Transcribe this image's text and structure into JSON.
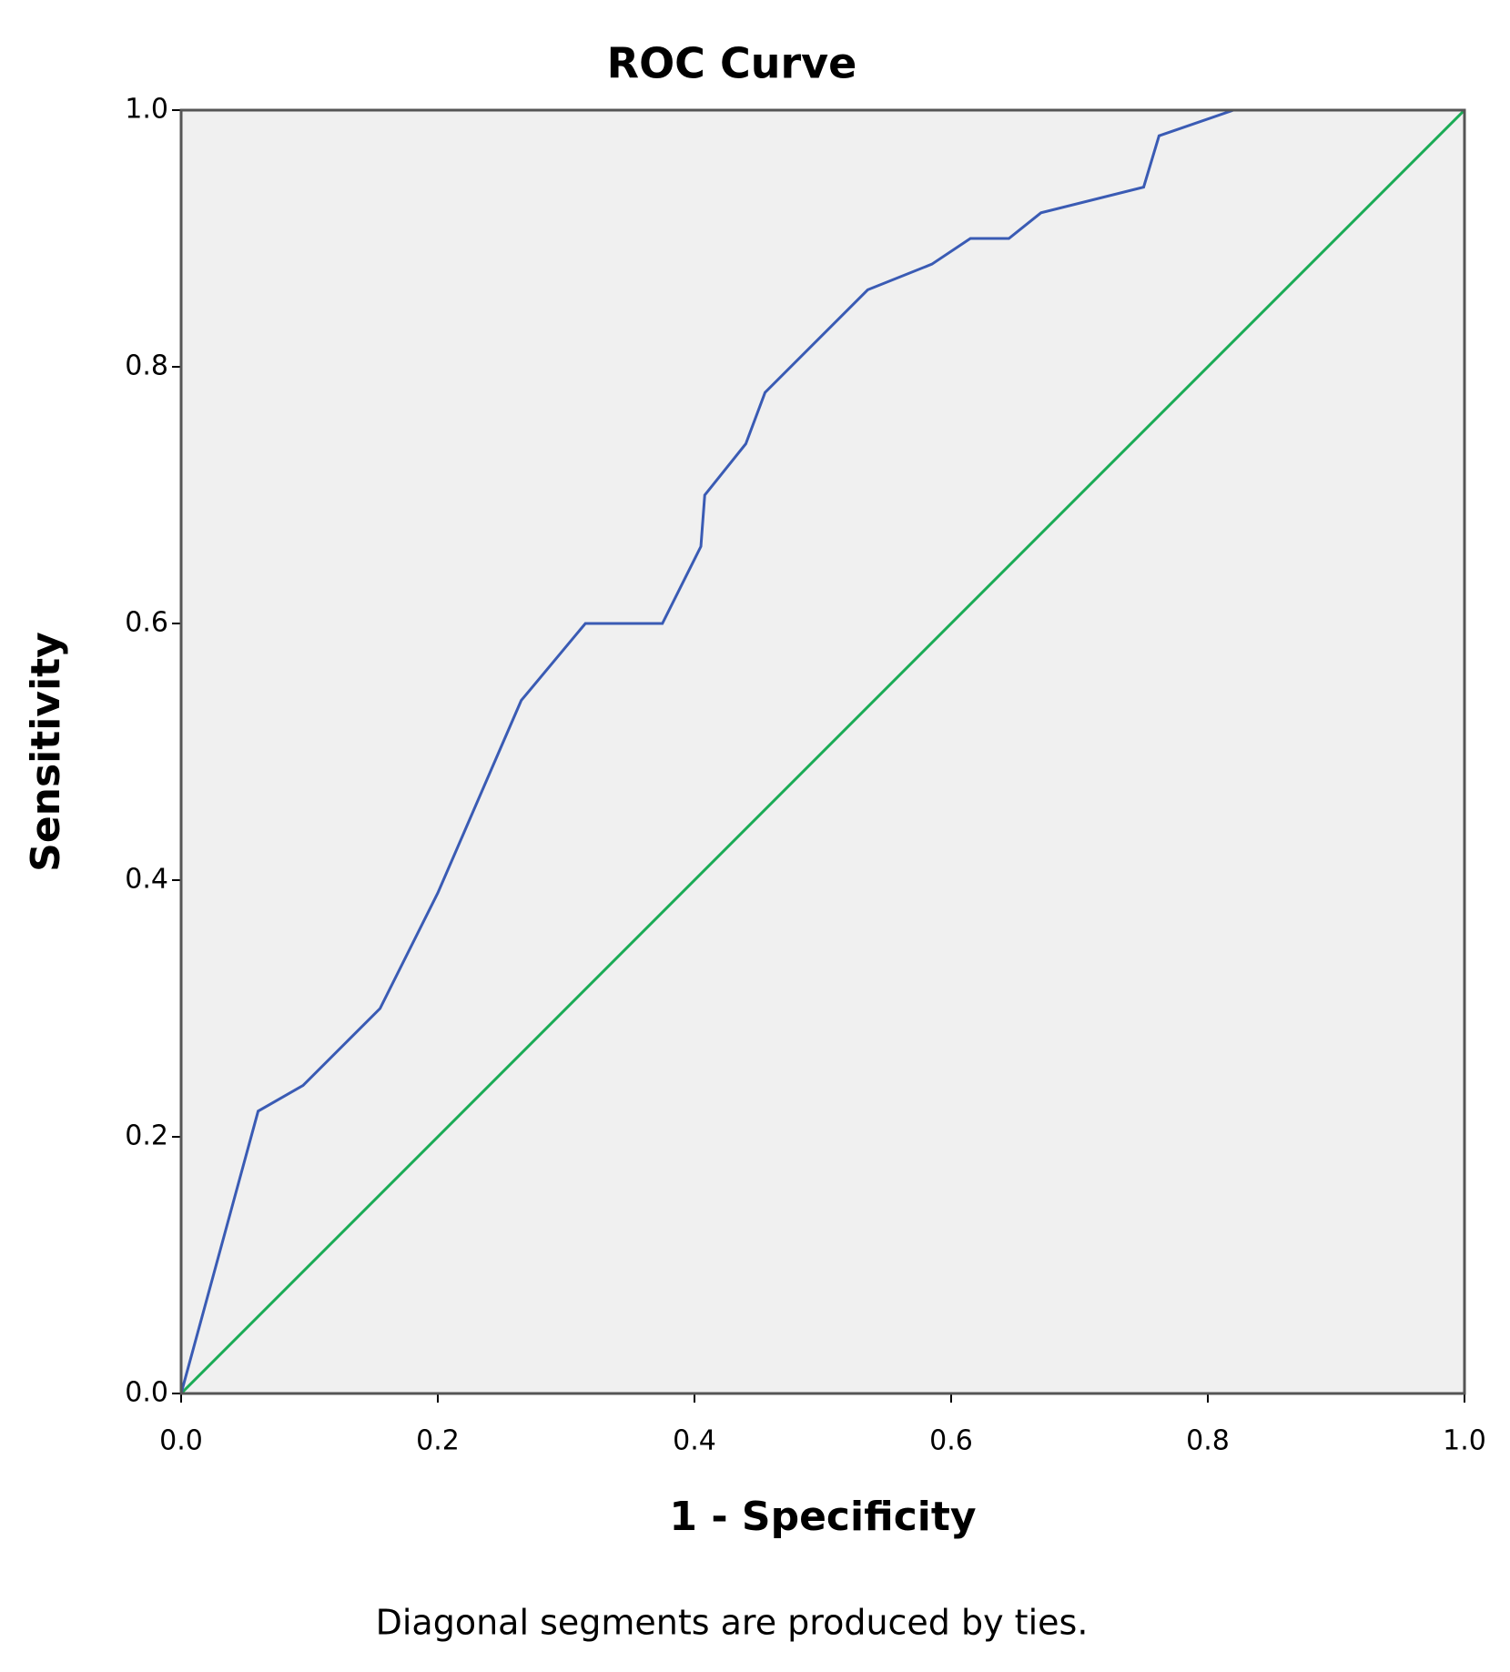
{
  "chart_data": {
    "type": "line",
    "title": "ROC Curve",
    "x_label": "1 - Specificity",
    "y_label": "Sensitivity",
    "footnote": "Diagonal segments are produced by ties.",
    "xlim": [
      0,
      1
    ],
    "ylim": [
      0,
      1
    ],
    "xticks": [
      {
        "value": 0,
        "label": "0.0"
      },
      0.2,
      0.4,
      0.6,
      0.8,
      {
        "value": 1,
        "label": "1.0"
      }
    ],
    "yticks": [
      {
        "value": 0,
        "label": "0.0"
      },
      0.2,
      0.4,
      0.6,
      0.8,
      {
        "value": 1,
        "label": "1.0"
      }
    ],
    "background": "#f0f0f0",
    "series": [
      {
        "color": "#3a5bb4",
        "x": [
          0,
          0.06,
          0.095,
          0.155,
          0.2,
          0.265,
          0.315,
          0.375,
          0.405,
          0.408,
          0.44,
          0.455,
          0.535,
          0.585,
          0.615,
          0.645,
          0.67,
          0.75,
          0.762,
          0.82,
          1
        ],
        "values": [
          0,
          0.22,
          0.24,
          0.3,
          0.39,
          0.54,
          0.6,
          0.6,
          0.66,
          0.7,
          0.74,
          0.78,
          0.86,
          0.88,
          0.9,
          0.9,
          0.92,
          0.94,
          0.98,
          1,
          1
        ]
      },
      {
        "color": "#1aab55",
        "x": [
          0,
          1
        ],
        "values": [
          0,
          1
        ]
      }
    ]
  }
}
